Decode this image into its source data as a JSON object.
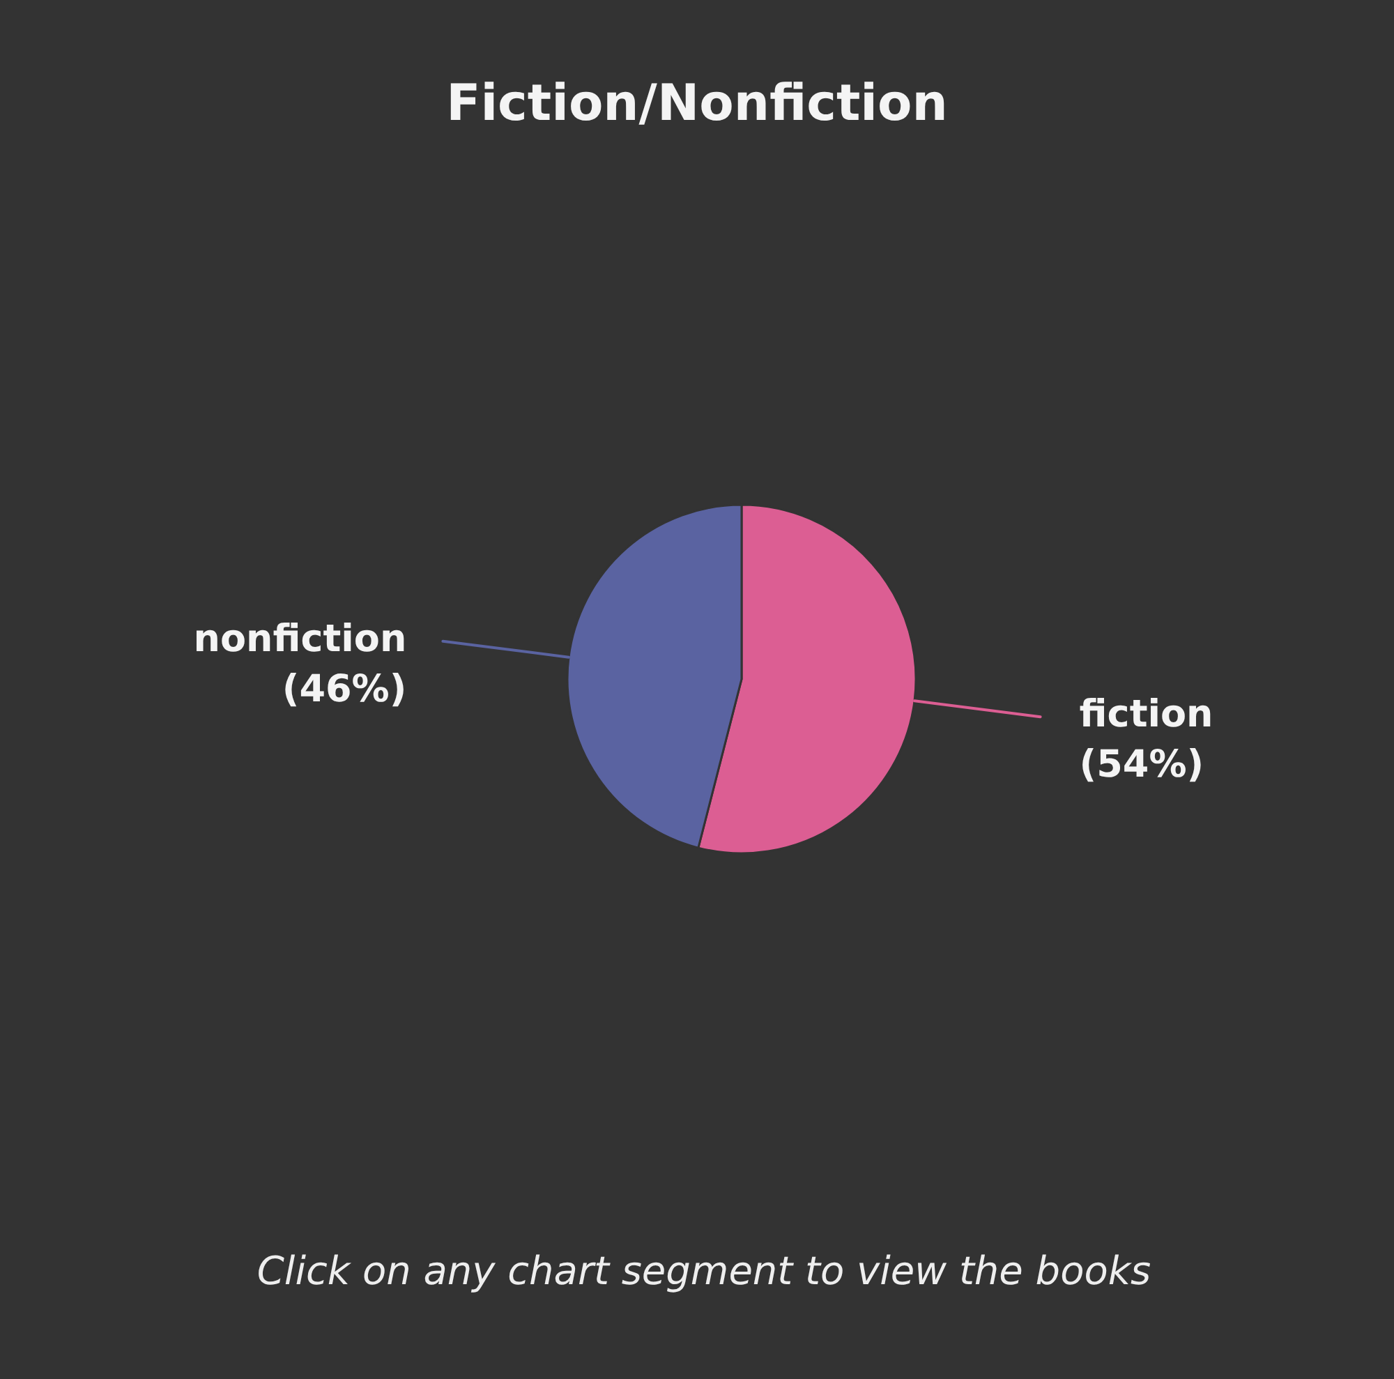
{
  "chart_data": {
    "type": "pie",
    "title": "Fiction/Nonfiction",
    "categories": [
      "fiction",
      "nonfiction"
    ],
    "values": [
      54,
      46
    ],
    "colors": [
      "#dc5e93",
      "#5a63a1"
    ],
    "value_labels": [
      "(54%)",
      "(46%)"
    ],
    "annotations": [
      "Click on any chart segment to view the books"
    ],
    "legend": false
  }
}
